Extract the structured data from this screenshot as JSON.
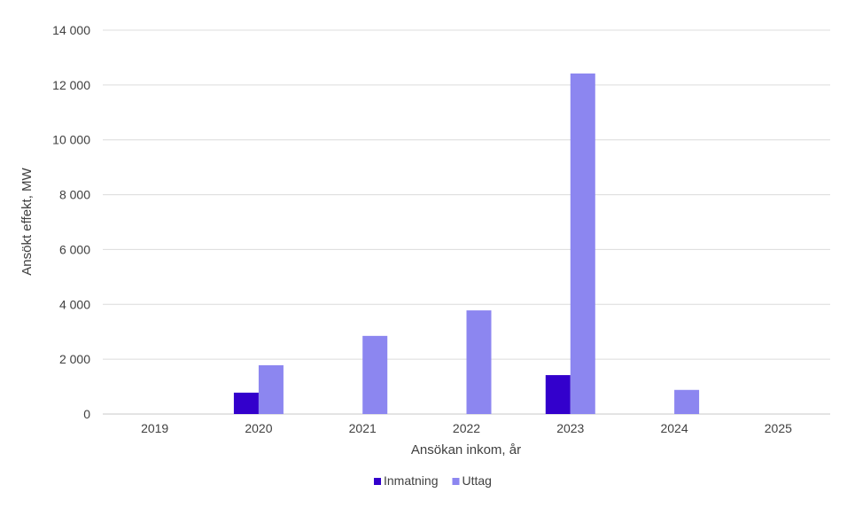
{
  "chart_data": {
    "type": "bar",
    "title": "",
    "xlabel": "Ansökan inkom, år",
    "ylabel": "Ansökt effekt, MW",
    "categories": [
      "2019",
      "2020",
      "2021",
      "2022",
      "2023",
      "2024",
      "2025"
    ],
    "series": [
      {
        "name": "Inmatning",
        "color": "#3300cc",
        "values": [
          0,
          780,
          0,
          0,
          1420,
          0,
          0
        ]
      },
      {
        "name": "Uttag",
        "color": "#8c86f0",
        "values": [
          0,
          1780,
          2850,
          3780,
          12420,
          880,
          0
        ]
      }
    ],
    "ylim": [
      0,
      14000
    ],
    "yticks": [
      0,
      2000,
      4000,
      6000,
      8000,
      10000,
      12000,
      14000
    ],
    "ytick_labels": [
      "0",
      "2 000",
      "4 000",
      "6 000",
      "8 000",
      "10 000",
      "12 000",
      "14 000"
    ],
    "grid": true,
    "legend_position": "bottom-center"
  }
}
